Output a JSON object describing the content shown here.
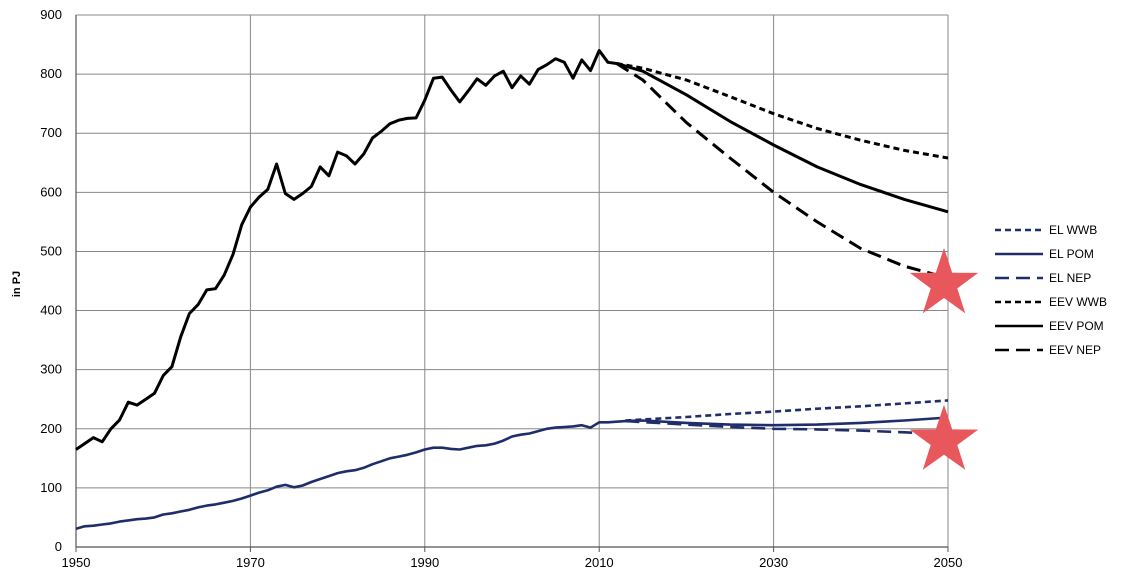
{
  "chart_data": {
    "type": "line",
    "title": "",
    "xlabel": "",
    "ylabel": "in PJ",
    "xlim": [
      1950,
      2050
    ],
    "ylim": [
      0,
      900
    ],
    "x_ticks": [
      1950,
      1970,
      1990,
      2010,
      2030,
      2050
    ],
    "y_ticks": [
      0,
      100,
      200,
      300,
      400,
      500,
      600,
      700,
      800,
      900
    ],
    "grid": true,
    "legend_position": "right",
    "series": [
      {
        "name": "EL WWB",
        "color": "#1f2d6b",
        "dash": "short-dash",
        "x": [
          2013,
          2020,
          2025,
          2030,
          2035,
          2040,
          2045,
          2050
        ],
        "y": [
          214,
          220,
          225,
          229,
          234,
          238,
          243,
          248
        ]
      },
      {
        "name": "EL POM",
        "color": "#1f2d6b",
        "dash": "solid",
        "x": [
          1950,
          1951,
          1952,
          1953,
          1954,
          1955,
          1956,
          1957,
          1958,
          1959,
          1960,
          1961,
          1962,
          1963,
          1964,
          1965,
          1966,
          1967,
          1968,
          1969,
          1970,
          1971,
          1972,
          1973,
          1974,
          1975,
          1976,
          1977,
          1978,
          1979,
          1980,
          1981,
          1982,
          1983,
          1984,
          1985,
          1986,
          1987,
          1988,
          1989,
          1990,
          1991,
          1992,
          1993,
          1994,
          1995,
          1996,
          1997,
          1998,
          1999,
          2000,
          2001,
          2002,
          2003,
          2004,
          2005,
          2006,
          2007,
          2008,
          2009,
          2010,
          2011,
          2012,
          2013,
          2015,
          2020,
          2025,
          2030,
          2035,
          2040,
          2045,
          2050
        ],
        "y": [
          31,
          35,
          36,
          38,
          40,
          43,
          45,
          47,
          48,
          50,
          55,
          57,
          60,
          63,
          67,
          70,
          72,
          75,
          78,
          82,
          87,
          92,
          96,
          102,
          105,
          101,
          104,
          110,
          115,
          120,
          125,
          128,
          130,
          134,
          140,
          145,
          150,
          153,
          156,
          160,
          165,
          168,
          168,
          166,
          165,
          168,
          171,
          172,
          175,
          180,
          187,
          190,
          192,
          196,
          200,
          202,
          203,
          204,
          206,
          202,
          211,
          211,
          212,
          213,
          214,
          210,
          207,
          206,
          207,
          210,
          214,
          219
        ]
      },
      {
        "name": "EL NEP",
        "color": "#1f2d6b",
        "dash": "long-dash",
        "x": [
          2013,
          2020,
          2025,
          2030,
          2035,
          2040,
          2045,
          2050
        ],
        "y": [
          213,
          207,
          203,
          200,
          199,
          197,
          194,
          190
        ]
      },
      {
        "name": "EEV WWB",
        "color": "#000000",
        "dash": "short-dash",
        "x": [
          2012,
          2015,
          2020,
          2025,
          2030,
          2035,
          2040,
          2045,
          2050
        ],
        "y": [
          818,
          810,
          790,
          762,
          733,
          708,
          688,
          671,
          658
        ]
      },
      {
        "name": "EEV POM",
        "color": "#000000",
        "dash": "solid",
        "x": [
          1950,
          1951,
          1952,
          1953,
          1954,
          1955,
          1956,
          1957,
          1958,
          1959,
          1960,
          1961,
          1962,
          1963,
          1964,
          1965,
          1966,
          1967,
          1968,
          1969,
          1970,
          1971,
          1972,
          1973,
          1974,
          1975,
          1976,
          1977,
          1978,
          1979,
          1980,
          1981,
          1982,
          1983,
          1984,
          1985,
          1986,
          1987,
          1988,
          1989,
          1990,
          1991,
          1992,
          1993,
          1994,
          1995,
          1996,
          1997,
          1998,
          1999,
          2000,
          2001,
          2002,
          2003,
          2004,
          2005,
          2006,
          2007,
          2008,
          2009,
          2010,
          2011,
          2012,
          2015,
          2020,
          2025,
          2030,
          2035,
          2040,
          2045,
          2050
        ],
        "y": [
          165,
          175,
          185,
          178,
          200,
          215,
          245,
          240,
          250,
          260,
          290,
          305,
          355,
          395,
          410,
          435,
          437,
          460,
          495,
          545,
          575,
          592,
          605,
          648,
          598,
          588,
          598,
          610,
          643,
          628,
          668,
          662,
          648,
          665,
          692,
          703,
          716,
          722,
          725,
          726,
          756,
          793,
          795,
          773,
          753,
          772,
          792,
          781,
          797,
          805,
          777,
          797,
          783,
          808,
          816,
          826,
          820,
          793,
          824,
          806,
          840,
          820,
          818,
          805,
          765,
          720,
          680,
          643,
          613,
          588,
          567
        ]
      },
      {
        "name": "EEV NEP",
        "color": "#000000",
        "dash": "long-dash",
        "x": [
          2012,
          2015,
          2020,
          2025,
          2030,
          2035,
          2040,
          2045,
          2050
        ],
        "y": [
          818,
          790,
          718,
          658,
          600,
          550,
          505,
          475,
          455
        ]
      }
    ],
    "annotations": [
      {
        "type": "star",
        "color": "#e8575c",
        "x": 2050,
        "y": 455
      },
      {
        "type": "star",
        "color": "#e8575c",
        "x": 2050,
        "y": 190
      }
    ]
  }
}
